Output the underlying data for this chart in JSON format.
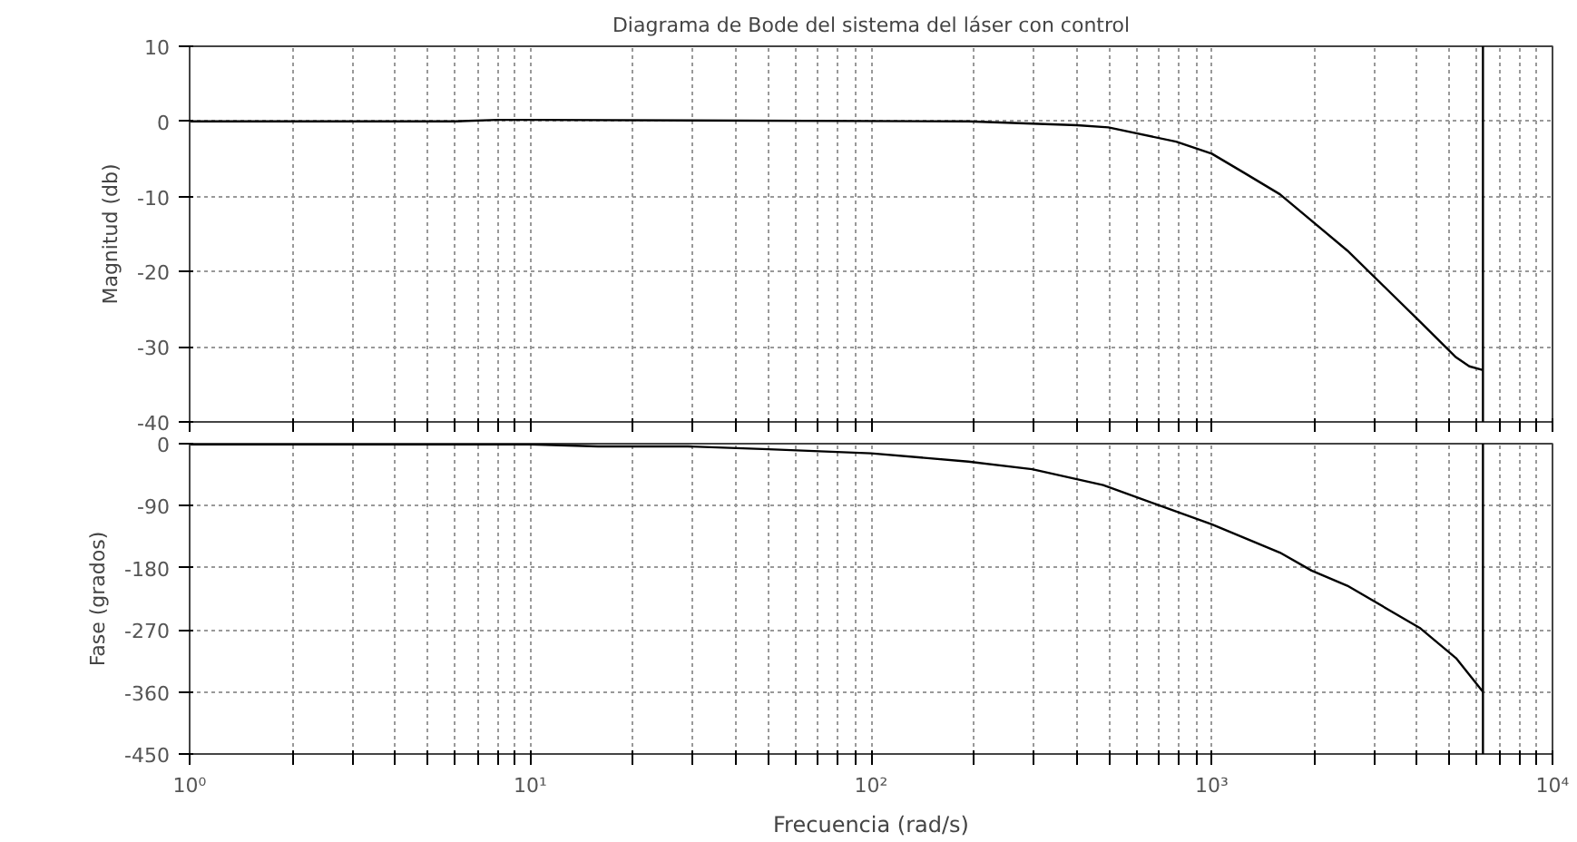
{
  "chart_data": [
    {
      "type": "line",
      "title": "Diagrama de Bode del sistema del láser con control",
      "ylabel": "Magnitud (db)",
      "x": [
        1,
        6,
        8,
        10,
        193,
        402,
        497,
        786,
        1000,
        1240,
        1585,
        2500,
        4075,
        5210,
        5700,
        6250
      ],
      "series": [
        {
          "color": "#000000",
          "values": [
            0,
            0,
            0.2,
            0.2,
            0,
            -0.5,
            -0.8,
            -2.7,
            -4.3,
            -6.8,
            -9.7,
            -17.2,
            -26.6,
            -31.4,
            -32.6,
            -33.1
          ]
        }
      ],
      "log": "x",
      "xlim": [
        1,
        10000
      ],
      "ylim": [
        -40,
        10
      ],
      "yticks": [
        -40,
        -30,
        -20,
        -10,
        0,
        10
      ],
      "xticks": [
        {
          "value": 1,
          "label": null
        },
        {
          "value": 2,
          "label": null
        },
        {
          "value": 3,
          "label": null
        },
        {
          "value": 4,
          "label": null
        },
        {
          "value": 5,
          "label": null
        },
        {
          "value": 6,
          "label": null
        },
        {
          "value": 7,
          "label": null
        },
        {
          "value": 8,
          "label": null
        },
        {
          "value": 9,
          "label": null
        },
        {
          "value": 10,
          "label": null
        },
        {
          "value": 20,
          "label": null
        },
        {
          "value": 30,
          "label": null
        },
        {
          "value": 40,
          "label": null
        },
        {
          "value": 50,
          "label": null
        },
        {
          "value": 60,
          "label": null
        },
        {
          "value": 70,
          "label": null
        },
        {
          "value": 80,
          "label": null
        },
        {
          "value": 90,
          "label": null
        },
        {
          "value": 100,
          "label": null
        },
        {
          "value": 200,
          "label": null
        },
        {
          "value": 300,
          "label": null
        },
        {
          "value": 400,
          "label": null
        },
        {
          "value": 500,
          "label": null
        },
        {
          "value": 600,
          "label": null
        },
        {
          "value": 700,
          "label": null
        },
        {
          "value": 800,
          "label": null
        },
        {
          "value": 900,
          "label": null
        },
        {
          "value": 1000,
          "label": null
        },
        {
          "value": 2000,
          "label": null
        },
        {
          "value": 3000,
          "label": null
        },
        {
          "value": 4000,
          "label": null
        },
        {
          "value": 5000,
          "label": null
        },
        {
          "value": 6000,
          "label": null
        },
        {
          "value": 7000,
          "label": null
        },
        {
          "value": 8000,
          "label": null
        },
        {
          "value": 9000,
          "label": null
        },
        {
          "value": 10000,
          "label": null
        }
      ],
      "ref_lines": [
        {
          "axis": "x",
          "value": 6250,
          "label": null
        }
      ],
      "grid": true,
      "tick_labels": "y"
    },
    {
      "type": "line",
      "xlabel": "Frecuencia (rad/s)",
      "ylabel": "Fase (grados)",
      "x": [
        1,
        10,
        15.8,
        29,
        50,
        100,
        193,
        297,
        480,
        1000,
        1585,
        1963,
        2500,
        4075,
        5210,
        6250
      ],
      "series": [
        {
          "color": "#000000",
          "values": [
            -1,
            -1,
            -4,
            -4,
            -8,
            -14,
            -26,
            -37,
            -60,
            -117,
            -158,
            -184,
            -206,
            -267,
            -311,
            -360
          ]
        }
      ],
      "log": "x",
      "xlim": [
        1,
        10000
      ],
      "ylim": [
        -450,
        0
      ],
      "yticks": [
        -450,
        -360,
        -270,
        -180,
        -90,
        0
      ],
      "xticks": [
        {
          "value": 1,
          "label": "10⁰"
        },
        {
          "value": 2,
          "label": null
        },
        {
          "value": 3,
          "label": null
        },
        {
          "value": 4,
          "label": null
        },
        {
          "value": 5,
          "label": null
        },
        {
          "value": 6,
          "label": null
        },
        {
          "value": 7,
          "label": null
        },
        {
          "value": 8,
          "label": null
        },
        {
          "value": 9,
          "label": null
        },
        {
          "value": 10,
          "label": "10¹"
        },
        {
          "value": 20,
          "label": null
        },
        {
          "value": 30,
          "label": null
        },
        {
          "value": 40,
          "label": null
        },
        {
          "value": 50,
          "label": null
        },
        {
          "value": 60,
          "label": null
        },
        {
          "value": 70,
          "label": null
        },
        {
          "value": 80,
          "label": null
        },
        {
          "value": 90,
          "label": null
        },
        {
          "value": 100,
          "label": "10²"
        },
        {
          "value": 200,
          "label": null
        },
        {
          "value": 300,
          "label": null
        },
        {
          "value": 400,
          "label": null
        },
        {
          "value": 500,
          "label": null
        },
        {
          "value": 600,
          "label": null
        },
        {
          "value": 700,
          "label": null
        },
        {
          "value": 800,
          "label": null
        },
        {
          "value": 900,
          "label": null
        },
        {
          "value": 1000,
          "label": "10³"
        },
        {
          "value": 2000,
          "label": null
        },
        {
          "value": 3000,
          "label": null
        },
        {
          "value": 4000,
          "label": null
        },
        {
          "value": 5000,
          "label": null
        },
        {
          "value": 6000,
          "label": null
        },
        {
          "value": 7000,
          "label": null
        },
        {
          "value": 8000,
          "label": null
        },
        {
          "value": 9000,
          "label": null
        },
        {
          "value": 10000,
          "label": "10⁴"
        }
      ],
      "ref_lines": [
        {
          "axis": "x",
          "value": 6250,
          "label": null
        }
      ],
      "grid": true
    }
  ]
}
